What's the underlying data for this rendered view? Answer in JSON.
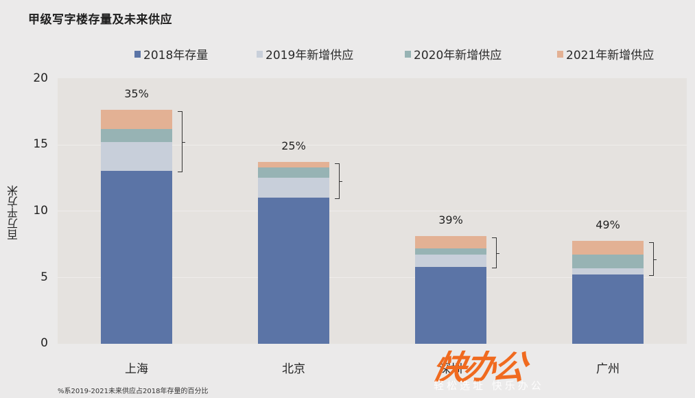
{
  "title": "甲级写字楼存量及未来供应",
  "legend": [
    {
      "label": "2018年存量",
      "color": "#5b74a6"
    },
    {
      "label": "2019年新增供应",
      "color": "#c8cfda"
    },
    {
      "label": "2020年新增供应",
      "color": "#97b3b4"
    },
    {
      "label": "2021年新增供应",
      "color": "#e3b194"
    }
  ],
  "y_axis": {
    "label": "百万平方米",
    "ticks": [
      "0",
      "5",
      "10",
      "15",
      "20"
    ]
  },
  "x_axis": {
    "ticks": [
      "上海",
      "北京",
      "深圳",
      "广州"
    ]
  },
  "percent_labels": [
    "35%",
    "25%",
    "39%",
    "49%"
  ],
  "footnote": "%系2019-2021未来供应占2018年存量的百分比",
  "watermark": {
    "main": "快办公",
    "sub": "轻松选址 快乐办公"
  },
  "chart_data": {
    "type": "bar",
    "stacked": true,
    "title": "甲级写字楼存量及未来供应",
    "xlabel": "",
    "ylabel": "百万平方米",
    "ylim": [
      0,
      20
    ],
    "yticks": [
      0,
      5,
      10,
      15,
      20
    ],
    "grid": true,
    "legend_position": "top",
    "categories": [
      "上海",
      "北京",
      "深圳",
      "广州"
    ],
    "series": [
      {
        "name": "2018年存量",
        "color": "#5b74a6",
        "values": [
          13.0,
          11.0,
          5.8,
          5.2
        ]
      },
      {
        "name": "2019年新增供应",
        "color": "#c8cfda",
        "values": [
          2.2,
          1.5,
          0.9,
          0.5
        ]
      },
      {
        "name": "2020年新增供应",
        "color": "#97b3b4",
        "values": [
          1.0,
          0.8,
          0.5,
          1.0
        ]
      },
      {
        "name": "2021年新增供应",
        "color": "#e3b194",
        "values": [
          1.4,
          0.4,
          0.9,
          1.05
        ]
      }
    ],
    "annotations": [
      {
        "category": "上海",
        "text": "35%"
      },
      {
        "category": "北京",
        "text": "25%"
      },
      {
        "category": "深圳",
        "text": "39%"
      },
      {
        "category": "广州",
        "text": "49%"
      }
    ],
    "footnote": "%系2019-2021未来供应占2018年存量的百分比"
  }
}
